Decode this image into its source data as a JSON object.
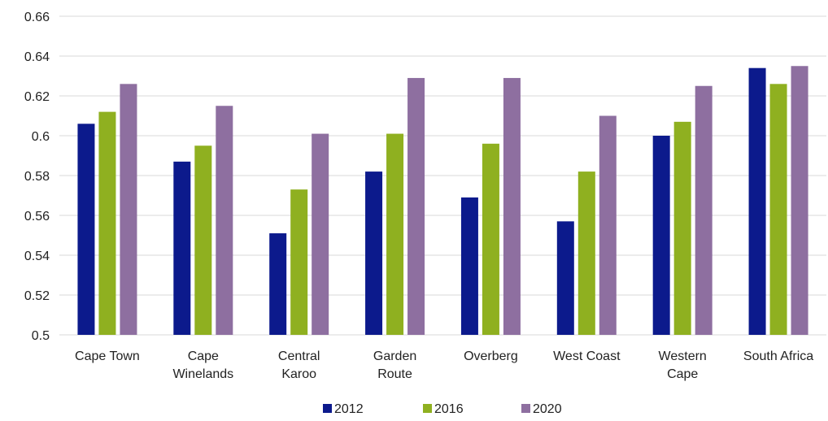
{
  "chart_data": {
    "type": "bar",
    "title": "",
    "xlabel": "",
    "ylabel": "",
    "ylim": [
      0.5,
      0.66
    ],
    "yticks": [
      "0.5",
      "0.52",
      "0.54",
      "0.56",
      "0.58",
      "0.6",
      "0.62",
      "0.64",
      "0.66"
    ],
    "grid": true,
    "legend_position": "bottom",
    "categories": [
      [
        "Cape Town"
      ],
      [
        "Cape",
        "Winelands"
      ],
      [
        "Central",
        "Karoo"
      ],
      [
        "Garden",
        "Route"
      ],
      [
        "Overberg"
      ],
      [
        "West Coast"
      ],
      [
        "Western",
        "Cape"
      ],
      [
        "South Africa"
      ]
    ],
    "series": [
      {
        "name": "2012",
        "color": "#0c1a8c",
        "values": [
          0.606,
          0.587,
          0.551,
          0.582,
          0.569,
          0.557,
          0.6,
          0.634
        ]
      },
      {
        "name": "2016",
        "color": "#8fb020",
        "values": [
          0.612,
          0.595,
          0.573,
          0.601,
          0.596,
          0.582,
          0.607,
          0.626
        ]
      },
      {
        "name": "2020",
        "color": "#8e6fa0",
        "values": [
          0.626,
          0.615,
          0.601,
          0.629,
          0.629,
          0.61,
          0.625,
          0.635
        ]
      }
    ]
  }
}
